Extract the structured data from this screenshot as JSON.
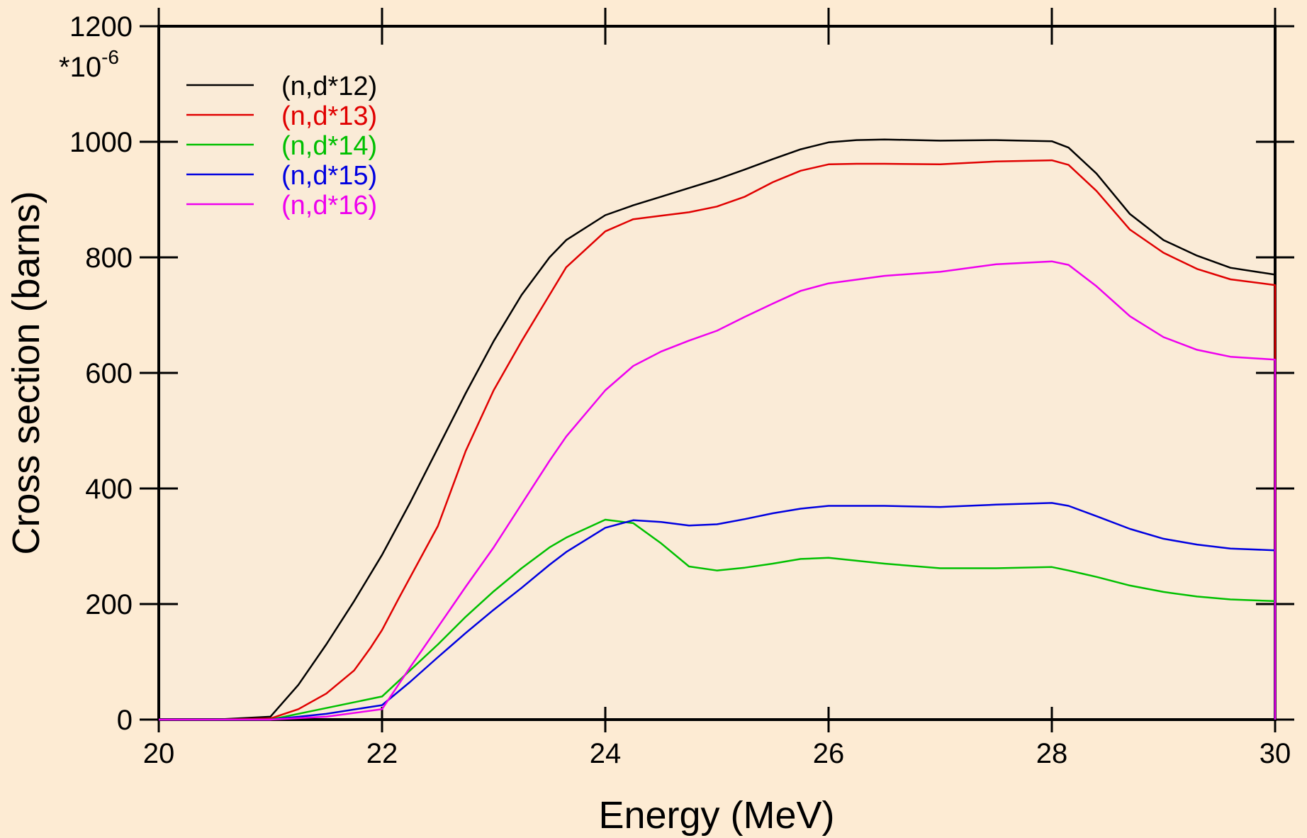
{
  "colors": {
    "page_background": "#fdebd3",
    "plot_background": "#faebd7",
    "axis": "#000000"
  },
  "chart_data": {
    "type": "line",
    "title": "",
    "xlabel": "Energy (MeV)",
    "ylabel": "Cross section (barns)",
    "y_multiplier_label": "*10",
    "y_multiplier_exponent": "-6",
    "xlim": [
      20,
      30
    ],
    "ylim": [
      0,
      1200
    ],
    "x_ticks": [
      20,
      22,
      24,
      26,
      28,
      30
    ],
    "x_tick_labels": [
      "20",
      "22",
      "24",
      "26",
      "28",
      "30"
    ],
    "y_ticks": [
      0,
      200,
      400,
      600,
      800,
      1000,
      1200
    ],
    "y_tick_labels": [
      "0",
      "200",
      "400",
      "600",
      "800",
      "1000",
      "1200"
    ],
    "grid": false,
    "legend_position": "top-left",
    "series": [
      {
        "name": "(n,d*12)",
        "color": "#000000",
        "x": [
          20.0,
          20.5,
          21.0,
          21.25,
          21.5,
          21.75,
          22.0,
          22.25,
          22.5,
          22.75,
          23.0,
          23.25,
          23.5,
          23.65,
          24.0,
          24.25,
          24.5,
          24.75,
          25.0,
          25.25,
          25.5,
          25.75,
          26.0,
          26.25,
          26.5,
          27.0,
          27.5,
          28.0,
          28.15,
          28.4,
          28.7,
          29.0,
          29.3,
          29.6,
          30.0
        ],
        "y": [
          0,
          0,
          5,
          60,
          130,
          205,
          285,
          375,
          470,
          565,
          655,
          735,
          800,
          830,
          873,
          890,
          905,
          920,
          935,
          952,
          970,
          987,
          999,
          1003,
          1004,
          1002,
          1003,
          1001,
          990,
          945,
          875,
          830,
          803,
          782,
          770
        ]
      },
      {
        "name": "(n,d*13)",
        "color": "#e00000",
        "x": [
          20.0,
          20.5,
          21.0,
          21.25,
          21.5,
          21.75,
          21.9,
          22.0,
          22.15,
          22.5,
          22.75,
          23.0,
          23.25,
          23.5,
          23.65,
          24.0,
          24.25,
          24.5,
          24.75,
          25.0,
          25.25,
          25.5,
          25.75,
          26.0,
          26.25,
          26.5,
          27.0,
          27.5,
          28.0,
          28.15,
          28.4,
          28.7,
          29.0,
          29.3,
          29.6,
          30.0
        ],
        "y": [
          0,
          0,
          2,
          18,
          45,
          85,
          125,
          155,
          210,
          335,
          465,
          570,
          655,
          735,
          783,
          845,
          866,
          872,
          878,
          888,
          905,
          930,
          950,
          961,
          962,
          962,
          961,
          966,
          968,
          960,
          915,
          848,
          808,
          780,
          762,
          752
        ]
      },
      {
        "name": "(n,d*14)",
        "color": "#00c000",
        "x": [
          20.0,
          20.5,
          21.0,
          21.5,
          22.0,
          22.25,
          22.5,
          22.75,
          23.0,
          23.25,
          23.5,
          23.65,
          24.0,
          24.25,
          24.5,
          24.75,
          25.0,
          25.25,
          25.5,
          25.75,
          26.0,
          26.5,
          27.0,
          27.5,
          28.0,
          28.15,
          28.4,
          28.7,
          29.0,
          29.3,
          29.6,
          30.0
        ],
        "y": [
          0,
          0,
          0,
          20,
          40,
          85,
          130,
          178,
          222,
          262,
          298,
          315,
          346,
          340,
          305,
          265,
          258,
          263,
          270,
          278,
          280,
          270,
          262,
          262,
          264,
          258,
          247,
          232,
          221,
          213,
          208,
          205
        ]
      },
      {
        "name": "(n,d*15)",
        "color": "#0000e0",
        "x": [
          20.0,
          20.5,
          21.0,
          21.5,
          22.0,
          22.25,
          22.5,
          22.75,
          23.0,
          23.25,
          23.5,
          23.65,
          24.0,
          24.25,
          24.5,
          24.75,
          25.0,
          25.25,
          25.5,
          25.75,
          26.0,
          26.5,
          27.0,
          27.5,
          28.0,
          28.15,
          28.4,
          28.7,
          29.0,
          29.3,
          29.6,
          30.0
        ],
        "y": [
          0,
          0,
          0,
          10,
          25,
          65,
          108,
          150,
          190,
          228,
          268,
          290,
          332,
          345,
          342,
          336,
          338,
          347,
          357,
          365,
          370,
          370,
          368,
          372,
          375,
          370,
          352,
          330,
          313,
          303,
          296,
          293
        ]
      },
      {
        "name": "(n,d*16)",
        "color": "#ee00ee",
        "x": [
          20.0,
          20.5,
          21.0,
          21.5,
          22.0,
          22.25,
          22.5,
          22.75,
          23.0,
          23.25,
          23.5,
          23.65,
          24.0,
          24.25,
          24.5,
          24.75,
          25.0,
          25.25,
          25.5,
          25.75,
          26.0,
          26.5,
          27.0,
          27.5,
          28.0,
          28.15,
          28.4,
          28.7,
          29.0,
          29.3,
          29.6,
          30.0
        ],
        "y": [
          0,
          0,
          0,
          5,
          18,
          90,
          160,
          230,
          298,
          373,
          448,
          490,
          570,
          612,
          637,
          656,
          673,
          697,
          720,
          742,
          755,
          768,
          775,
          788,
          793,
          787,
          750,
          698,
          662,
          640,
          628,
          623
        ]
      }
    ]
  }
}
